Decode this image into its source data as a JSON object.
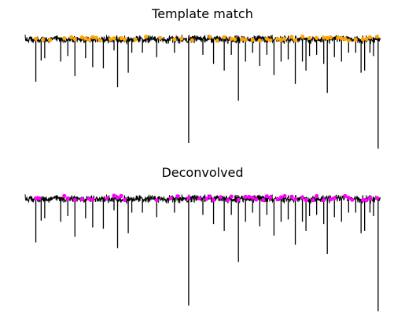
{
  "chart_data": [
    {
      "type": "line",
      "title": "Template match",
      "xlabel": "",
      "ylabel": "",
      "axes_visible": false,
      "trace_color": "#000000",
      "marker_color": "#ffa500",
      "marker_label": "",
      "x_range": [
        0,
        100
      ],
      "baseline": 0,
      "ylim": [
        -1.0,
        0.08
      ],
      "deflections": [
        {
          "x": 3.0,
          "y": -0.38
        },
        {
          "x": 4.5,
          "y": -0.19
        },
        {
          "x": 5.5,
          "y": -0.17
        },
        {
          "x": 10.0,
          "y": -0.2
        },
        {
          "x": 12.0,
          "y": -0.15
        },
        {
          "x": 14.0,
          "y": -0.33
        },
        {
          "x": 17.0,
          "y": -0.17
        },
        {
          "x": 19.0,
          "y": -0.25
        },
        {
          "x": 22.0,
          "y": -0.26
        },
        {
          "x": 25.0,
          "y": -0.1
        },
        {
          "x": 26.0,
          "y": -0.43
        },
        {
          "x": 29.0,
          "y": -0.3
        },
        {
          "x": 30.0,
          "y": -0.12
        },
        {
          "x": 33.0,
          "y": -0.12
        },
        {
          "x": 37.0,
          "y": -0.16
        },
        {
          "x": 42.0,
          "y": -0.12
        },
        {
          "x": 46.0,
          "y": -0.93
        },
        {
          "x": 50.0,
          "y": -0.14
        },
        {
          "x": 53.0,
          "y": -0.22
        },
        {
          "x": 56.0,
          "y": -0.28
        },
        {
          "x": 58.0,
          "y": -0.14
        },
        {
          "x": 60.0,
          "y": -0.55
        },
        {
          "x": 62.0,
          "y": -0.2
        },
        {
          "x": 64.0,
          "y": -0.12
        },
        {
          "x": 66.0,
          "y": -0.24
        },
        {
          "x": 68.0,
          "y": -0.14
        },
        {
          "x": 70.0,
          "y": -0.32
        },
        {
          "x": 72.0,
          "y": -0.2
        },
        {
          "x": 74.0,
          "y": -0.18
        },
        {
          "x": 76.0,
          "y": -0.4
        },
        {
          "x": 78.0,
          "y": -0.2
        },
        {
          "x": 79.0,
          "y": -0.28
        },
        {
          "x": 80.0,
          "y": -0.15
        },
        {
          "x": 82.0,
          "y": -0.14
        },
        {
          "x": 84.0,
          "y": -0.22
        },
        {
          "x": 85.0,
          "y": -0.48
        },
        {
          "x": 87.0,
          "y": -0.16
        },
        {
          "x": 89.0,
          "y": -0.2
        },
        {
          "x": 91.0,
          "y": -0.12
        },
        {
          "x": 93.0,
          "y": -0.12
        },
        {
          "x": 94.5,
          "y": -0.3
        },
        {
          "x": 95.5,
          "y": -0.28
        },
        {
          "x": 97.0,
          "y": -0.12
        },
        {
          "x": 98.0,
          "y": -0.15
        },
        {
          "x": 99.3,
          "y": -0.98
        }
      ],
      "events_x": [
        3,
        5,
        7,
        11,
        13,
        14,
        16,
        17,
        18,
        19,
        20,
        21,
        24,
        25,
        27,
        28,
        31,
        34,
        38,
        42,
        44,
        47,
        52,
        54,
        56,
        58,
        59,
        61,
        62,
        64,
        66,
        68,
        69,
        71,
        72,
        73,
        75,
        76,
        78,
        80,
        82,
        84,
        85,
        86,
        88,
        89,
        90,
        91,
        93,
        95,
        96,
        97,
        99
      ]
    },
    {
      "type": "line",
      "title": "Deconvolved",
      "xlabel": "",
      "ylabel": "",
      "axes_visible": false,
      "trace_color": "#000000",
      "marker_color": "#ff00ff",
      "marker_label": "",
      "x_range": [
        0,
        100
      ],
      "baseline": 0,
      "ylim": [
        -1.0,
        0.08
      ],
      "deflections": [
        {
          "x": 3.0,
          "y": -0.38
        },
        {
          "x": 4.5,
          "y": -0.19
        },
        {
          "x": 5.5,
          "y": -0.17
        },
        {
          "x": 10.0,
          "y": -0.2
        },
        {
          "x": 12.0,
          "y": -0.15
        },
        {
          "x": 14.0,
          "y": -0.33
        },
        {
          "x": 17.0,
          "y": -0.17
        },
        {
          "x": 19.0,
          "y": -0.25
        },
        {
          "x": 22.0,
          "y": -0.26
        },
        {
          "x": 25.0,
          "y": -0.1
        },
        {
          "x": 26.0,
          "y": -0.43
        },
        {
          "x": 29.0,
          "y": -0.3
        },
        {
          "x": 30.0,
          "y": -0.12
        },
        {
          "x": 33.0,
          "y": -0.12
        },
        {
          "x": 37.0,
          "y": -0.16
        },
        {
          "x": 42.0,
          "y": -0.12
        },
        {
          "x": 46.0,
          "y": -0.93
        },
        {
          "x": 50.0,
          "y": -0.14
        },
        {
          "x": 53.0,
          "y": -0.22
        },
        {
          "x": 56.0,
          "y": -0.28
        },
        {
          "x": 58.0,
          "y": -0.14
        },
        {
          "x": 60.0,
          "y": -0.55
        },
        {
          "x": 62.0,
          "y": -0.2
        },
        {
          "x": 64.0,
          "y": -0.12
        },
        {
          "x": 66.0,
          "y": -0.24
        },
        {
          "x": 68.0,
          "y": -0.14
        },
        {
          "x": 70.0,
          "y": -0.32
        },
        {
          "x": 72.0,
          "y": -0.2
        },
        {
          "x": 74.0,
          "y": -0.18
        },
        {
          "x": 76.0,
          "y": -0.4
        },
        {
          "x": 78.0,
          "y": -0.2
        },
        {
          "x": 79.0,
          "y": -0.28
        },
        {
          "x": 80.0,
          "y": -0.15
        },
        {
          "x": 82.0,
          "y": -0.14
        },
        {
          "x": 84.0,
          "y": -0.22
        },
        {
          "x": 85.0,
          "y": -0.48
        },
        {
          "x": 87.0,
          "y": -0.16
        },
        {
          "x": 89.0,
          "y": -0.2
        },
        {
          "x": 91.0,
          "y": -0.12
        },
        {
          "x": 93.0,
          "y": -0.12
        },
        {
          "x": 94.5,
          "y": -0.3
        },
        {
          "x": 95.5,
          "y": -0.28
        },
        {
          "x": 97.0,
          "y": -0.12
        },
        {
          "x": 98.0,
          "y": -0.15
        },
        {
          "x": 99.3,
          "y": -0.98
        }
      ],
      "events_x": [
        3,
        4,
        11,
        12,
        14,
        16,
        18,
        19,
        23,
        25,
        26,
        27,
        28,
        37,
        41,
        43,
        46,
        49,
        51,
        52,
        53,
        55,
        57,
        58,
        60,
        62,
        63,
        64,
        65,
        67,
        68,
        69,
        71,
        72,
        73,
        75,
        76,
        78,
        79,
        81,
        82,
        84,
        86,
        87,
        90,
        91,
        92,
        95,
        96,
        97,
        99
      ]
    }
  ]
}
